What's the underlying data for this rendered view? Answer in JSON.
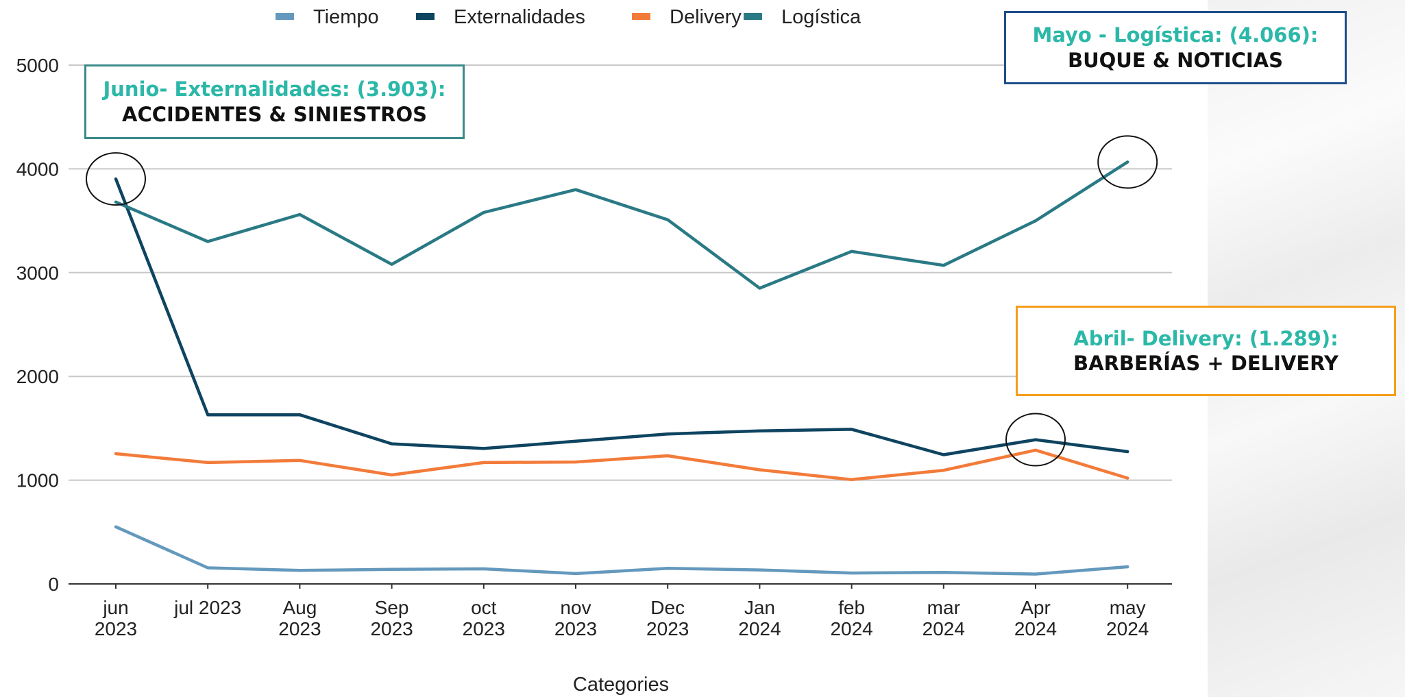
{
  "chart_data": {
    "type": "line",
    "title": "",
    "xlabel": "Categories",
    "ylabel": "",
    "ylim": [
      0,
      5000
    ],
    "yticks": [
      0,
      1000,
      2000,
      3000,
      4000,
      5000
    ],
    "grid": true,
    "legend_position": "top",
    "categories": [
      [
        "jun",
        "2023"
      ],
      [
        "jul 2023"
      ],
      [
        "Aug",
        "2023"
      ],
      [
        "Sep",
        "2023"
      ],
      [
        "oct",
        "2023"
      ],
      [
        "nov",
        "2023"
      ],
      [
        "Dec",
        "2023"
      ],
      [
        "Jan",
        "2024"
      ],
      [
        "feb",
        "2024"
      ],
      [
        "mar",
        "2024"
      ],
      [
        "Apr",
        "2024"
      ],
      [
        "may",
        "2024"
      ]
    ],
    "series": [
      {
        "name": "Tiempo",
        "color": "#6499bd",
        "values": [
          550,
          155,
          130,
          140,
          145,
          100,
          150,
          135,
          105,
          110,
          95,
          165
        ]
      },
      {
        "name": "Externalidades",
        "color": "#0e4460",
        "values": [
          3903,
          1630,
          1630,
          1350,
          1305,
          1375,
          1445,
          1475,
          1490,
          1245,
          1390,
          1275
        ]
      },
      {
        "name": "Delivery",
        "color": "#f37b3a",
        "values": [
          1255,
          1170,
          1190,
          1050,
          1170,
          1175,
          1235,
          1100,
          1005,
          1095,
          1289,
          1020
        ]
      },
      {
        "name": "Logística",
        "color": "#2a7a85",
        "values": [
          3680,
          3300,
          3560,
          3080,
          3580,
          3800,
          3510,
          2850,
          3205,
          3070,
          3500,
          4066
        ]
      }
    ],
    "highlights": [
      {
        "series": "Externalidades",
        "category_index": 0
      },
      {
        "series": "Logística",
        "category_index": 11
      },
      {
        "series": "Externalidades",
        "category_index": 10
      }
    ]
  },
  "annotations": {
    "junio": {
      "headline": "Junio- Externalidades: (3.903):",
      "detail": "ACCIDENTES & SINIESTROS",
      "color": "#2cb8a8"
    },
    "mayo": {
      "headline": "Mayo - Logística: (4.066):",
      "detail": "BUQUE & NOTICIAS",
      "color": "#2cb8a8"
    },
    "abril": {
      "headline": "Abril- Delivery: (1.289):",
      "detail": "BARBERÍAS + DELIVERY",
      "color": "#2cb8a8"
    }
  }
}
